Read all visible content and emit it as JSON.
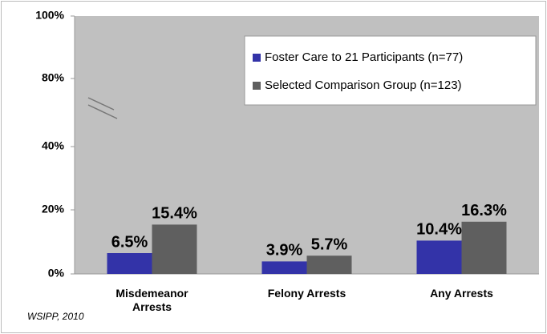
{
  "chart_data": {
    "type": "bar",
    "categories": [
      "Misdemeanor Arrests",
      "Felony Arrests",
      "Any Arrests"
    ],
    "series": [
      {
        "name": "Foster Care to 21 Participants (n=77)",
        "color": "#3333a8",
        "values": [
          6.5,
          3.9,
          10.4
        ],
        "value_labels": [
          "6.5%",
          "3.9%",
          "10.4%"
        ]
      },
      {
        "name": "Selected Comparison Group (n=123)",
        "color": "#5f5f5f",
        "values": [
          15.4,
          5.7,
          16.3
        ],
        "value_labels": [
          "15.4%",
          "5.7%",
          "16.3%"
        ]
      }
    ],
    "ylim": [
      0,
      100
    ],
    "yticks": [
      {
        "value": 0,
        "label": "0%"
      },
      {
        "value": 20,
        "label": "20%"
      },
      {
        "value": 40,
        "label": "40%"
      },
      {
        "value": 80,
        "label": "80%"
      },
      {
        "value": 100,
        "label": "100%"
      }
    ],
    "grid": false,
    "legend": "upper right",
    "note": "WSIPP, 2010"
  }
}
